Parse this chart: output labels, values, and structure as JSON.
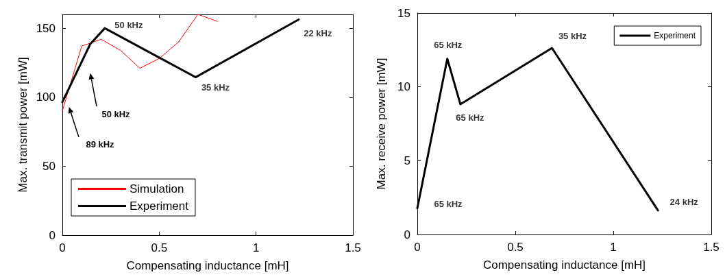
{
  "chart_data": [
    {
      "type": "line",
      "xlabel": "Compensating inductance [mH]",
      "ylabel": "Max. transmit power [mW]",
      "series": [
        {
          "name": "Simulation",
          "color": "#ff0000",
          "x": [
            0,
            0.1,
            0.2,
            0.3,
            0.4,
            0.5,
            0.6,
            0.7,
            0.8
          ],
          "values": [
            90,
            137,
            142,
            134,
            121,
            128,
            140,
            160,
            155
          ]
        },
        {
          "name": "Experiment",
          "color": "#000000",
          "x": [
            0,
            0.144,
            0.219,
            0.688,
            1.22
          ],
          "values": [
            96.5,
            138.5,
            150,
            114.5,
            156.3
          ]
        }
      ],
      "annotations": [
        {
          "text": "50 kHz",
          "x": 0.219,
          "y": 150
        },
        {
          "text": "22 kHz",
          "x": 1.22,
          "y": 156.3
        },
        {
          "text": "35 kHz",
          "x": 0.688,
          "y": 114.5
        },
        "50 kHz",
        "89 kHz"
      ],
      "xlim": [
        0,
        1.5
      ],
      "xticks": [
        0,
        0.5,
        1,
        1.5
      ],
      "ylim": [
        0,
        160
      ],
      "yticks": [
        0,
        50,
        100,
        150
      ],
      "legend": "bottom left",
      "grid": false
    },
    {
      "type": "line",
      "xlabel": "Compensating inductance [mH]",
      "ylabel": "Max. receive power [mW]",
      "series": [
        {
          "name": "Experiment",
          "color": "#000000",
          "x": [
            0,
            0.153,
            0.22,
            0.687,
            1.228
          ],
          "values": [
            1.78,
            11.9,
            8.82,
            12.63,
            1.63
          ]
        }
      ],
      "annotations": [
        {
          "text": "65 kHz",
          "x": 0,
          "y": 1.78
        },
        {
          "text": "65 kHz",
          "x": 0.153,
          "y": 11.9
        },
        {
          "text": "65 kHz",
          "x": 0.22,
          "y": 8.82
        },
        {
          "text": "35 kHz",
          "x": 0.687,
          "y": 12.63
        },
        {
          "text": "24 kHz",
          "x": 1.228,
          "y": 1.63
        }
      ],
      "xlim": [
        0,
        1.5
      ],
      "xticks": [
        0,
        0.5,
        1,
        1.5
      ],
      "ylim": [
        0,
        15
      ],
      "yticks": [
        0,
        5,
        10,
        15
      ],
      "legend": "top right",
      "grid": false
    }
  ]
}
